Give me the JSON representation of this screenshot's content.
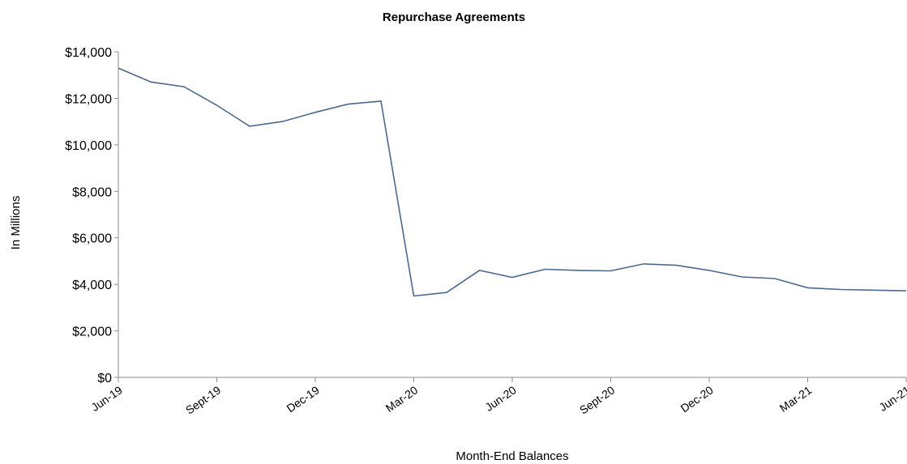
{
  "chart_data": {
    "type": "line",
    "title": "Repurchase Agreements",
    "xlabel": "Month-End Balances",
    "ylabel": "In Millions",
    "ylim": [
      0,
      14000
    ],
    "y_ticks": [
      0,
      2000,
      4000,
      6000,
      8000,
      10000,
      12000,
      14000
    ],
    "y_tick_labels": [
      "$0",
      "$2,000",
      "$4,000",
      "$6,000",
      "$8,000",
      "$10,000",
      "$12,000",
      "$14,000"
    ],
    "x_tick_labels": [
      "Jun-19",
      "Sept-19",
      "Dec-19",
      "Mar-20",
      "Jun-20",
      "Sept-20",
      "Dec-20",
      "Mar-21",
      "Jun-21"
    ],
    "categories": [
      "Jun-19",
      "Jul-19",
      "Aug-19",
      "Sep-19",
      "Oct-19",
      "Nov-19",
      "Dec-19",
      "Jan-20",
      "Feb-20",
      "Mar-20",
      "Apr-20",
      "May-20",
      "Jun-20",
      "Jul-20",
      "Aug-20",
      "Sep-20",
      "Oct-20",
      "Nov-20",
      "Dec-20",
      "Jan-21",
      "Feb-21",
      "Mar-21",
      "Apr-21",
      "May-21",
      "Jun-21"
    ],
    "series": [
      {
        "color": "#4a6a92",
        "values": [
          13300,
          12700,
          12500,
          11700,
          10800,
          11000,
          11400,
          11750,
          11880,
          3500,
          3650,
          4600,
          4300,
          4650,
          4600,
          4580,
          4880,
          4820,
          4600,
          4320,
          4250,
          3850,
          3780,
          3750,
          3720
        ]
      }
    ],
    "grid": false,
    "legend": "none"
  }
}
